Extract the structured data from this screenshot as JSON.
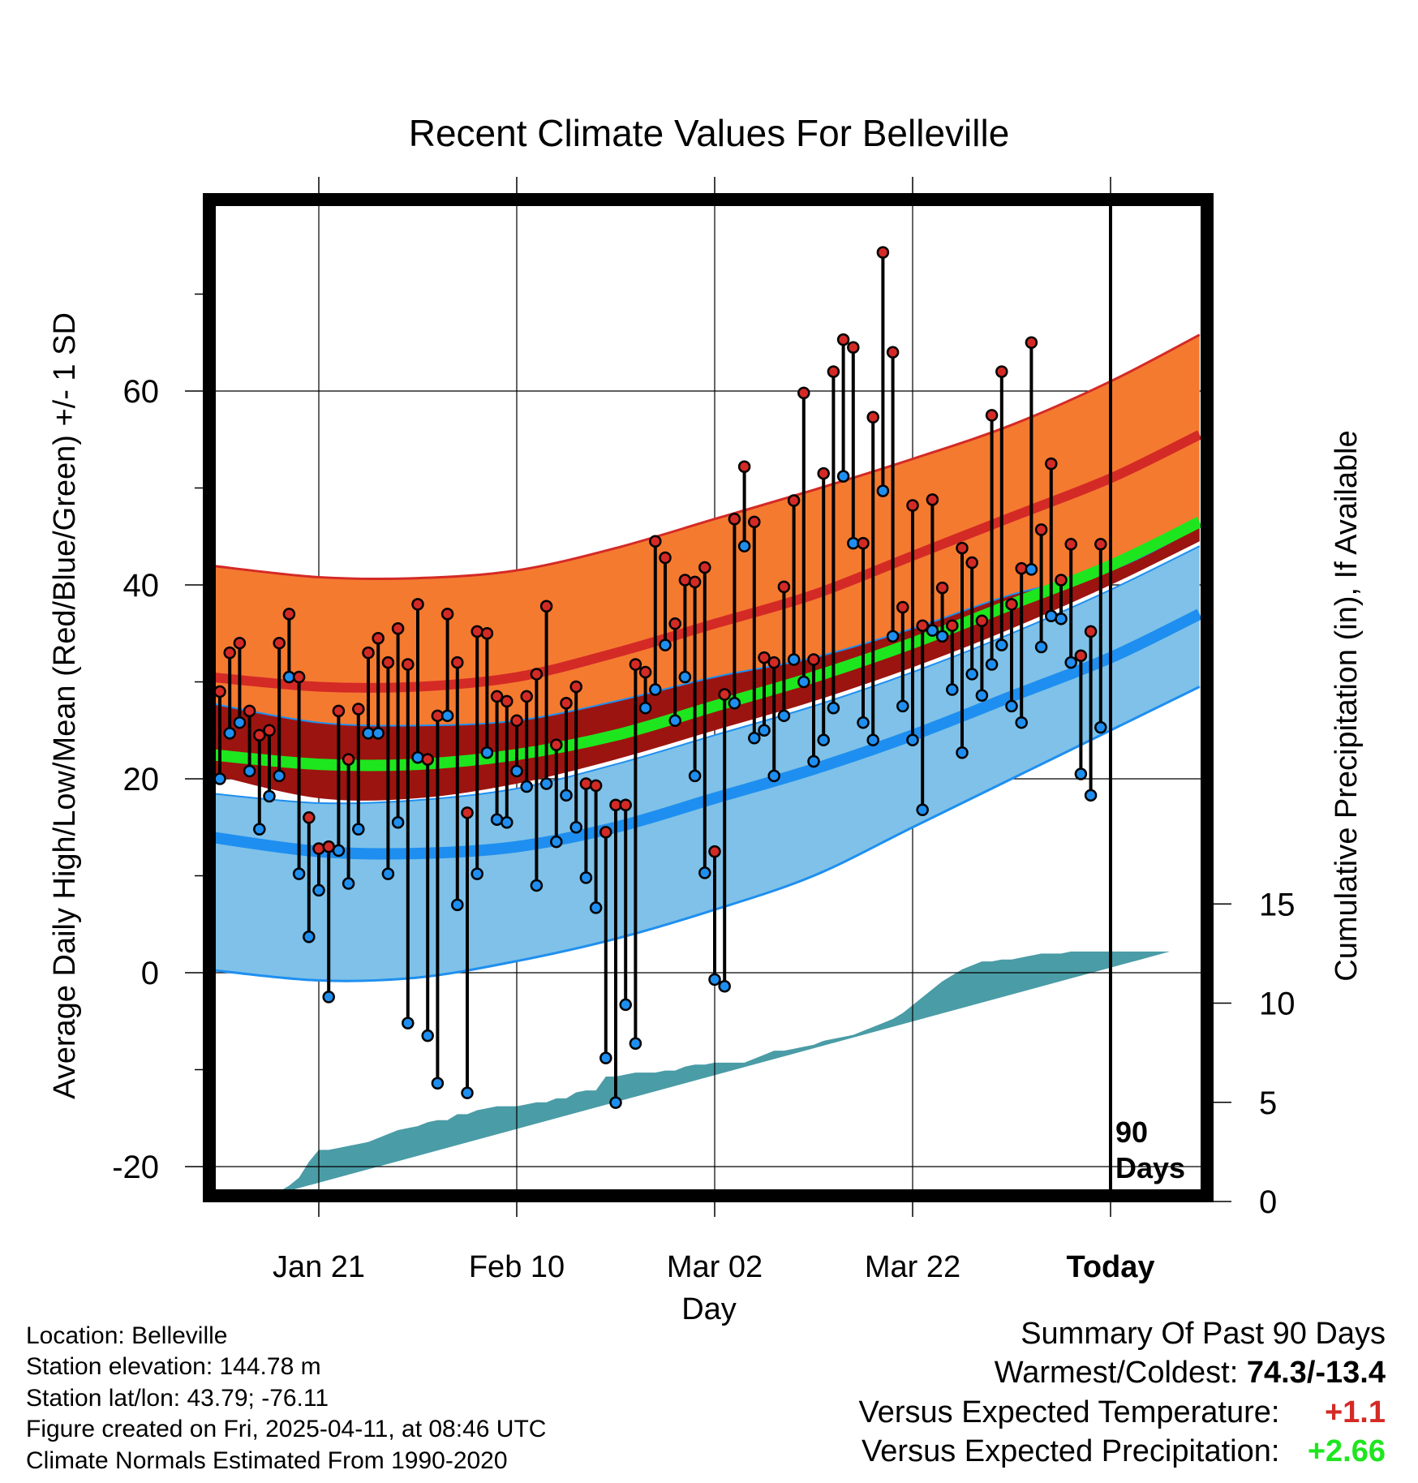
{
  "chart_data": {
    "type": "line",
    "title": "Recent Climate Values For Belleville",
    "xlabel": "Day",
    "ylabel": "Average Daily High/Low/Mean (Red/Blue/Green) +/- 1 SD",
    "y2label": "Cumulative Precipitation (in), If Available",
    "x_range": [
      -11,
      89
    ],
    "ylim": [
      -23,
      79
    ],
    "y2lim": [
      0,
      15
    ],
    "x_ticks": [
      {
        "day": 0,
        "label": "Jan 21"
      },
      {
        "day": 20,
        "label": "Feb 10"
      },
      {
        "day": 40,
        "label": "Mar 02"
      },
      {
        "day": 60,
        "label": "Mar 22"
      },
      {
        "day": 80,
        "label": "Today"
      }
    ],
    "y_ticks": [
      -20,
      0,
      20,
      40,
      60
    ],
    "y2_ticks": [
      0,
      5,
      10,
      15
    ],
    "today_day": 80,
    "today_label": [
      "90",
      "Days"
    ],
    "colors": {
      "high_band": "#f47a30",
      "high_line": "#d42a26",
      "low_band": "#7fc1e8",
      "low_line": "#1e8ff0",
      "mean_band": "#9c1410",
      "mean_line": "#1ee61e",
      "precip": "#4a9ca6",
      "high_dot": "#d42a26",
      "low_dot": "#1e8ff0"
    },
    "normals_days": [
      -11,
      0,
      10,
      20,
      30,
      40,
      50,
      60,
      70,
      80,
      89
    ],
    "normal_high_mean": [
      30.5,
      29.5,
      29.5,
      30.5,
      33.0,
      36.0,
      39.0,
      43.0,
      47.0,
      51.0,
      55.5
    ],
    "normal_high_sd_upper": [
      42.0,
      40.8,
      40.7,
      41.5,
      43.8,
      46.8,
      49.8,
      53.0,
      56.5,
      61.0,
      65.8
    ],
    "normal_high_sd_lower": [
      27.8,
      25.8,
      25.5,
      26.0,
      28.0,
      30.5,
      32.5,
      35.5,
      39.0,
      41.5,
      46.0
    ],
    "normal_low_mean": [
      14.0,
      12.5,
      12.3,
      13.0,
      15.0,
      18.0,
      21.0,
      24.5,
      28.5,
      32.5,
      37.0
    ],
    "normal_low_sd_upper": [
      18.5,
      17.5,
      17.8,
      19.0,
      21.5,
      24.5,
      27.5,
      31.0,
      35.0,
      39.5,
      44.0
    ],
    "normal_low_sd_lower": [
      0.3,
      -0.8,
      -0.5,
      1.2,
      3.5,
      6.5,
      10.0,
      15.0,
      20.0,
      25.0,
      29.5
    ],
    "normal_mean": [
      22.5,
      21.5,
      21.5,
      22.5,
      24.5,
      27.5,
      30.5,
      34.0,
      38.0,
      42.0,
      46.5
    ],
    "normal_mean_sd_lower": [
      20.5,
      18.0,
      18.0,
      19.5,
      22.0,
      25.0,
      28.0,
      31.5,
      35.5,
      40.0,
      44.5
    ],
    "daily_days": [
      -10,
      -9,
      -8,
      -7,
      -6,
      -5,
      -4,
      -3,
      -2,
      -1,
      0,
      1,
      2,
      3,
      4,
      5,
      6,
      7,
      8,
      9,
      10,
      11,
      12,
      13,
      14,
      15,
      16,
      17,
      18,
      19,
      20,
      21,
      22,
      23,
      24,
      25,
      26,
      27,
      28,
      29,
      30,
      31,
      32,
      33,
      34,
      35,
      36,
      37,
      38,
      39,
      40,
      41,
      42,
      43,
      44,
      45,
      46,
      47,
      48,
      49,
      50,
      51,
      52,
      53,
      54,
      55,
      56,
      57,
      58,
      59,
      60,
      61,
      62,
      63,
      64,
      65,
      66,
      67,
      68,
      69,
      70,
      71,
      72,
      73,
      74,
      75,
      76,
      77,
      78,
      79
    ],
    "daily_high": [
      29,
      33,
      34,
      27,
      24.5,
      25,
      34,
      37,
      30.5,
      16,
      12.8,
      13,
      27,
      22,
      27.2,
      33,
      34.5,
      32,
      35.5,
      31.8,
      38,
      22,
      26.5,
      37,
      32,
      16.5,
      35.2,
      35,
      28.5,
      28,
      26,
      28.5,
      30.8,
      37.8,
      23.5,
      27.8,
      29.5,
      19.5,
      19.3,
      14.5,
      17.3,
      17.3,
      31.8,
      31,
      44.5,
      42.8,
      36,
      40.5,
      40.3,
      41.8,
      12.5,
      28.7,
      46.8,
      52.2,
      46.5,
      32.5,
      32,
      39.8,
      48.7,
      59.8,
      32.3,
      51.5,
      62,
      65.3,
      64.5,
      44.3,
      57.3,
      74.3,
      64,
      37.7,
      48.2,
      35.8,
      48.8,
      39.7,
      35.8,
      43.8,
      42.3,
      36.3,
      57.5,
      62,
      38,
      41.7,
      65,
      45.7,
      52.5,
      40.5,
      44.2,
      32.7,
      35.2,
      44.2
    ],
    "daily_low": [
      20,
      24.7,
      25.8,
      20.8,
      14.8,
      18.2,
      20.3,
      30.5,
      10.2,
      3.7,
      8.5,
      -2.5,
      12.6,
      9.2,
      14.8,
      24.7,
      24.7,
      10.2,
      15.5,
      -5.2,
      22.2,
      -6.5,
      -11.4,
      26.5,
      7,
      -12.4,
      10.2,
      22.7,
      15.8,
      15.5,
      20.8,
      19.2,
      9,
      19.5,
      13.5,
      18.3,
      15,
      9.8,
      6.7,
      -8.8,
      -13.4,
      -3.3,
      -7.3,
      27.3,
      29.2,
      33.8,
      26,
      30.5,
      20.3,
      10.3,
      -0.7,
      -1.4,
      27.8,
      44,
      24.2,
      25,
      20.3,
      26.5,
      32.3,
      30,
      21.8,
      24,
      27.3,
      51.2,
      44.3,
      25.8,
      24,
      49.7,
      34.7,
      27.5,
      24,
      16.8,
      35.3,
      34.7,
      29.2,
      22.7,
      30.8,
      28.6,
      31.8,
      33.8,
      27.5,
      25.8,
      41.6,
      33.6,
      36.8,
      36.5,
      32,
      20.5,
      18.3,
      25.3
    ],
    "precip_days": [
      -7,
      -6,
      -5,
      -4,
      -3,
      -2,
      -1,
      0,
      1,
      2,
      3,
      4,
      5,
      6,
      7,
      8,
      9,
      10,
      11,
      12,
      13,
      14,
      15,
      16,
      17,
      18,
      19,
      20,
      21,
      22,
      23,
      24,
      25,
      26,
      27,
      28,
      29,
      30,
      31,
      32,
      33,
      34,
      35,
      36,
      37,
      38,
      39,
      40,
      41,
      42,
      43,
      44,
      45,
      46,
      47,
      48,
      49,
      50,
      51,
      52,
      53,
      54,
      55,
      56,
      57,
      58,
      59,
      60,
      61,
      62,
      63,
      64,
      65,
      66,
      67,
      68,
      69,
      70,
      71,
      72,
      73,
      74,
      75,
      76,
      77,
      78,
      79,
      80,
      81,
      82,
      83,
      84,
      85,
      86,
      87,
      88,
      89
    ],
    "precip_cum": [
      0,
      0.3,
      0.3,
      0.5,
      0.8,
      1.2,
      2.0,
      2.6,
      2.6,
      2.7,
      2.8,
      2.9,
      3.0,
      3.2,
      3.4,
      3.6,
      3.7,
      3.8,
      4.0,
      4.1,
      4.1,
      4.4,
      4.4,
      4.6,
      4.7,
      4.8,
      4.8,
      4.8,
      4.9,
      5.0,
      5.0,
      5.2,
      5.2,
      5.5,
      5.6,
      5.6,
      6.3,
      6.3,
      6.4,
      6.5,
      6.5,
      6.5,
      6.6,
      6.6,
      6.8,
      6.9,
      6.9,
      7.0,
      7.0,
      7.0,
      7.0,
      7.2,
      7.4,
      7.6,
      7.6,
      7.7,
      7.8,
      7.9,
      8.1,
      8.2,
      8.3,
      8.4,
      8.6,
      8.8,
      9.0,
      9.2,
      9.5,
      9.9,
      10.3,
      10.7,
      11.1,
      11.4,
      11.7,
      11.9,
      12.1,
      12.1,
      12.2,
      12.2,
      12.3,
      12.4,
      12.5,
      12.5,
      12.5,
      12.6,
      12.6,
      12.6,
      12.6,
      12.6,
      12.6,
      12.6,
      12.6,
      12.6,
      12.6,
      12.6
    ]
  },
  "metadata": {
    "location": "Location: Belleville",
    "elevation": "Station elevation: 144.78 m",
    "latlon": "Station lat/lon: 43.79; -76.11",
    "created": "Figure created on Fri, 2025-04-11, at 08:46 UTC",
    "normals": "Climate Normals Estimated From 1990-2020"
  },
  "summary": {
    "title": "Summary Of Past 90 Days",
    "warm_cold_label": "Warmest/Coldest:",
    "warm_cold_value": "74.3/-13.4",
    "temp_label": "Versus Expected Temperature:",
    "temp_value": "+1.1",
    "temp_color": "#d42a26",
    "precip_label": "Versus Expected Precipitation:",
    "precip_value": "+2.66",
    "precip_color": "#1ee61e"
  }
}
